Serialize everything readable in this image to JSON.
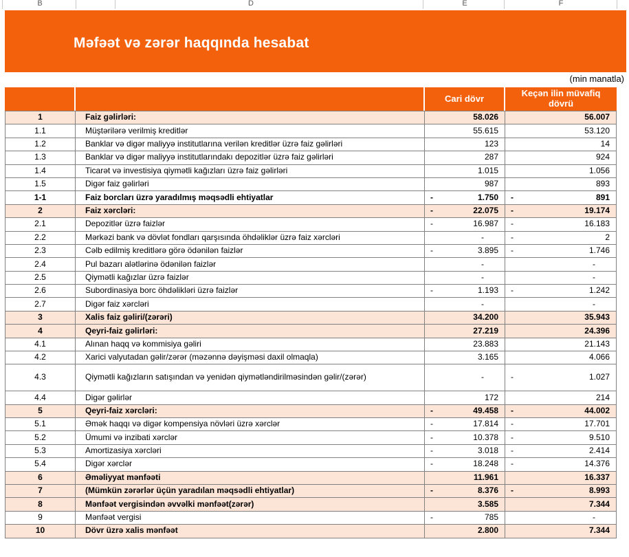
{
  "sheet": {
    "column_letters": [
      "B",
      "D",
      "E",
      "F"
    ]
  },
  "banner": {
    "title": "Məfəət və zərər haqqında hesabat"
  },
  "unit_note": "(min manatla)",
  "colors": {
    "banner_orange": "#F4610D",
    "row_shaded_peach": "#FCE4D6",
    "cell_border_gray": "#808080",
    "header_text": "#FFFFFF"
  },
  "table": {
    "headers": {
      "row_number": "",
      "description": "",
      "current": "Cari dövr",
      "previous": "Keçən ilin müvafiq dövrü"
    },
    "rows": [
      {
        "num": "1",
        "label": "Faiz gəlirləri:",
        "cur": "58.026",
        "prev": "56.007",
        "bold": true,
        "shaded": true
      },
      {
        "num": "1.1",
        "label": "Müştərilərə verilmiş kreditlər",
        "cur": "55.615",
        "prev": "53.120"
      },
      {
        "num": "1.2",
        "label": "Banklar və digər maliyyə institutlarına verilən kreditlər üzrə faiz gəlirləri",
        "cur": "123",
        "prev": "14"
      },
      {
        "num": "1.3",
        "label": "Banklar və digər maliyyə institutlarındakı depozitlər üzrə faiz gəlirləri",
        "cur": "287",
        "prev": "924"
      },
      {
        "num": "1.4",
        "label": "Ticarət və investisiya qiymətli kağızları üzrə faiz gəlirləri",
        "cur": "1.015",
        "prev": "1.056"
      },
      {
        "num": "1.5",
        "label": "Digər faiz gəlirləri",
        "cur": "987",
        "prev": "893"
      },
      {
        "num": "1-1",
        "label": "Faiz borcları üzrə yaradılmış məqsədli ehtiyatlar",
        "cur_sign": "-",
        "cur": "1.750",
        "prev_sign": "-",
        "prev": "891",
        "bold": true
      },
      {
        "num": "2",
        "label": "Faiz xərcləri:",
        "cur_sign": "-",
        "cur": "22.075",
        "prev_sign": "-",
        "prev": "19.174",
        "bold": true,
        "shaded": true
      },
      {
        "num": "2.1",
        "label": "Depozitlər üzrə faizlər",
        "cur_sign": "-",
        "cur": "16.987",
        "prev_sign": "-",
        "prev": "16.183"
      },
      {
        "num": "2.2",
        "label": "Mərkəzi bank və dövlət fondları qarşısında öhdəliklər üzrə faiz xərcləri",
        "cur": "-",
        "prev_sign": "-",
        "prev": "2"
      },
      {
        "num": "2.3",
        "label": "Cəlb edilmiş kreditlərə görə ödənilən faizlər",
        "cur_sign": "-",
        "cur": "3.895",
        "prev_sign": "-",
        "prev": "1.746"
      },
      {
        "num": "2.4",
        "label": "Pul bazarı alətlərinə ödənilən faizlər",
        "cur": "-",
        "prev": "-"
      },
      {
        "num": "2.5",
        "label": "Qiymətli kağızlar üzrə faizlər",
        "cur": "-",
        "prev": "-"
      },
      {
        "num": "2.6",
        "label": "Subordinasiya borc öhdəlikləri üzrə faizlər",
        "cur_sign": "-",
        "cur": "1.193",
        "prev_sign": "-",
        "prev": "1.242"
      },
      {
        "num": "2.7",
        "label": "Digər faiz xərcləri",
        "cur": "-",
        "prev": "-"
      },
      {
        "num": "3",
        "label": "Xalis faiz gəliri/(zərəri)",
        "cur": "34.200",
        "prev": "35.943",
        "bold": true,
        "shaded": true
      },
      {
        "num": "4",
        "label": "Qeyri-faiz gəlirləri:",
        "cur": "27.219",
        "prev": "24.396",
        "bold": true,
        "shaded": true
      },
      {
        "num": "4.1",
        "label": "Alınan haqq və kommisiya gəliri",
        "cur": "23.883",
        "prev": "21.143"
      },
      {
        "num": "4.2",
        "label": "Xarici valyutadan gəlir/zərər (məzənnə dəyişməsi daxil olmaqla)",
        "cur": "3.165",
        "prev": "4.066"
      },
      {
        "num": "4.3",
        "label": "Qiymətli kağızların satışından və yenidən qiymətləndirilməsindən gəlir/(zərər)",
        "cur": "-",
        "prev_sign": "-",
        "prev": "1.027",
        "tall": true
      },
      {
        "num": "4.4",
        "label": "Digər gəlirlər",
        "cur": "172",
        "prev": "214"
      },
      {
        "num": "5",
        "label": "Qeyri-faiz xərcləri:",
        "cur_sign": "-",
        "cur": "49.458",
        "prev_sign": "-",
        "prev": "44.002",
        "bold": true,
        "shaded": true
      },
      {
        "num": "5.1",
        "label": "Əmək haqqı və digər kompensiya növləri üzrə xərclər",
        "cur_sign": "-",
        "cur": "17.814",
        "prev_sign": "-",
        "prev": "17.701"
      },
      {
        "num": "5.2",
        "label": "Ümumi və inzibati xərclər",
        "cur_sign": "-",
        "cur": "10.378",
        "prev_sign": "-",
        "prev": "9.510"
      },
      {
        "num": "5.3",
        "label": "Amortizasiya xərcləri",
        "cur_sign": "-",
        "cur": "3.018",
        "prev_sign": "-",
        "prev": "2.414"
      },
      {
        "num": "5.4",
        "label": "Digər xərclər",
        "cur_sign": "-",
        "cur": "18.248",
        "prev_sign": "-",
        "prev": "14.376"
      },
      {
        "num": "6",
        "label": "Əməliyyat mənfəəti",
        "cur": "11.961",
        "prev": "16.337",
        "bold": true,
        "shaded": true
      },
      {
        "num": "7",
        "label": "(Mümkün zərərlər üçün yaradılan məqsədli ehtiyatlar)",
        "cur_sign": "-",
        "cur": "8.376",
        "prev_sign": "-",
        "prev": "8.993",
        "bold": true,
        "shaded": true
      },
      {
        "num": "8",
        "label": "Mənfəət vergisindən əvvəlki mənfəət(zərər)",
        "cur": "3.585",
        "prev": "7.344",
        "bold": true,
        "shaded": true
      },
      {
        "num": "9",
        "label": "Mənfəət vergisi",
        "cur_sign": "-",
        "cur": "785",
        "prev": "-"
      },
      {
        "num": "10",
        "label": "Dövr üzrə xalis mənfəət",
        "cur": "2.800",
        "prev": "7.344",
        "bold": true,
        "shaded": true
      }
    ]
  }
}
